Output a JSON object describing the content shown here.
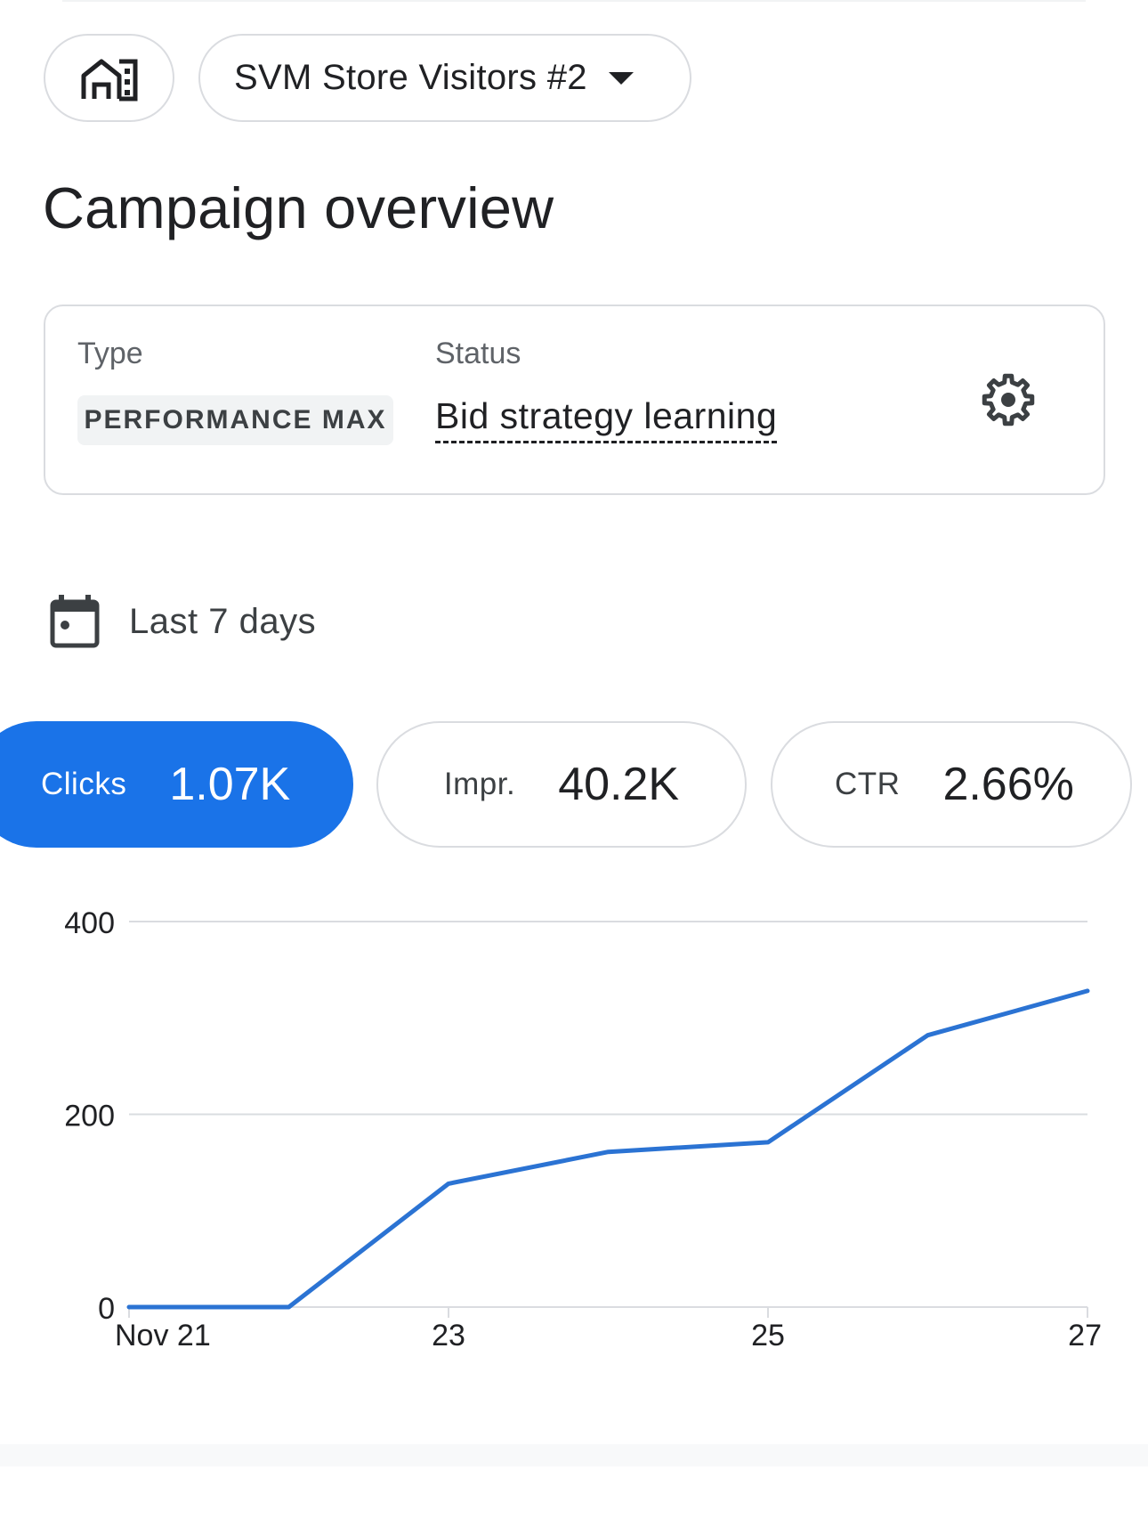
{
  "header": {
    "home_icon": "store-building-icon",
    "campaign_name": "SVM Store Visitors #2",
    "dropdown_icon": "caret-down-icon"
  },
  "page": {
    "title": "Campaign overview"
  },
  "overview_card": {
    "type_label": "Type",
    "type_value": "PERFORMANCE MAX",
    "status_label": "Status",
    "status_value": "Bid strategy learning",
    "settings_icon": "gear-icon"
  },
  "date_range": {
    "icon": "calendar-icon",
    "label": "Last 7 days"
  },
  "metrics": [
    {
      "label": "Clicks",
      "value": "1.07K",
      "selected": true
    },
    {
      "label": "Impr.",
      "value": "40.2K",
      "selected": false
    },
    {
      "label": "CTR",
      "value": "2.66%",
      "selected": false
    }
  ],
  "colors": {
    "accent": "#1a73e8",
    "line": "#2b73d3",
    "grid": "#dadce0",
    "text": "#202124"
  },
  "chart_data": {
    "type": "line",
    "x": [
      "Nov 21",
      "Nov 22",
      "Nov 23",
      "Nov 24",
      "Nov 25",
      "Nov 26",
      "Nov 27"
    ],
    "series": [
      {
        "values": [
          0,
          0,
          128,
          161,
          171,
          282,
          328
        ]
      }
    ],
    "x_tick_labels": [
      "Nov 21",
      "23",
      "25",
      "27"
    ],
    "y_ticks": [
      "400",
      "200",
      "0"
    ],
    "ylim": [
      0,
      400
    ],
    "grid": true,
    "legend": "none"
  }
}
